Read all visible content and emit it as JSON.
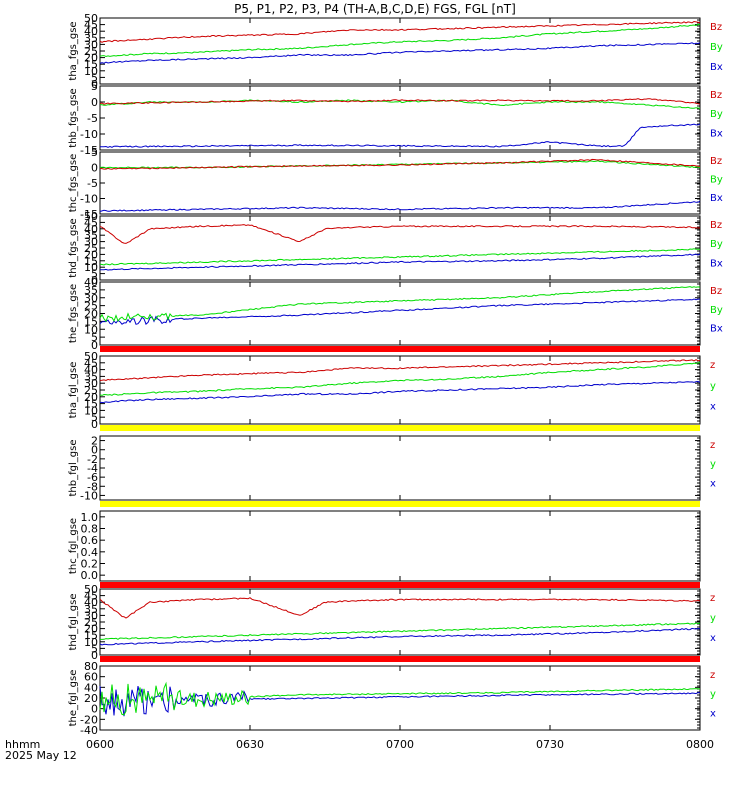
{
  "title": "P5, P1, P2, P3, P4 (TH-A,B,C,D,E) FGS, FGL [nT]",
  "time_label": "hhmm",
  "date_label": "2025 May 12",
  "colors": {
    "x": "#0000cc",
    "y": "#00dd00",
    "z": "#cc0000",
    "red_bar": "#ff0000",
    "yellow_bar": "#ffff00"
  },
  "chart_data": {
    "type": "line",
    "x_ticks": [
      "0600",
      "0630",
      "0700",
      "0730",
      "0800"
    ],
    "panels": [
      {
        "ylabel": "tha_fgs_gse",
        "ylim": [
          0,
          50
        ],
        "yticks": [
          "0",
          "5",
          "10",
          "15",
          "20",
          "25",
          "30",
          "35",
          "40",
          "45",
          "50"
        ],
        "tick_values": [
          0,
          5,
          10,
          15,
          20,
          25,
          30,
          35,
          40,
          45,
          50
        ],
        "legend": [
          "Bz",
          "By",
          "Bx"
        ],
        "series": [
          {
            "name": "Bx",
            "color": "x",
            "t": [
              0,
              10,
              20,
              30,
              40,
              50,
              60,
              70,
              80,
              90,
              100,
              110,
              120
            ],
            "v": [
              16,
              18,
              19,
              20,
              22,
              22,
              24,
              25,
              26,
              27,
              29,
              30,
              31
            ]
          },
          {
            "name": "By",
            "color": "y",
            "t": [
              0,
              10,
              20,
              30,
              40,
              50,
              60,
              70,
              80,
              90,
              100,
              110,
              120
            ],
            "v": [
              21,
              23,
              24,
              26,
              27,
              30,
              32,
              33,
              35,
              38,
              40,
              42,
              45
            ]
          },
          {
            "name": "Bz",
            "color": "z",
            "t": [
              0,
              10,
              20,
              30,
              40,
              50,
              60,
              70,
              80,
              90,
              100,
              110,
              120
            ],
            "v": [
              32,
              34,
              36,
              37,
              38,
              41,
              41,
              42,
              43,
              44,
              45,
              46,
              47
            ]
          }
        ]
      },
      {
        "ylabel": "thb_fgs_gse",
        "ylim": [
          -15,
          5
        ],
        "yticks": [
          "-15",
          "-10",
          "-5",
          "0",
          "5"
        ],
        "tick_values": [
          -15,
          -10,
          -5,
          0,
          5
        ],
        "legend": [
          "Bz",
          "By",
          "Bx"
        ],
        "series": [
          {
            "name": "Bx",
            "color": "x",
            "t": [
              0,
              20,
              40,
              60,
              80,
              90,
              100,
              105,
              108,
              112,
              120
            ],
            "v": [
              -14,
              -13.8,
              -13.5,
              -13.7,
              -13.9,
              -12.5,
              -13.8,
              -13.8,
              -8,
              -7.5,
              -7
            ]
          },
          {
            "name": "By",
            "color": "y",
            "t": [
              0,
              10,
              20,
              30,
              40,
              50,
              60,
              70,
              80,
              90,
              100,
              110,
              120
            ],
            "v": [
              -1,
              0,
              0,
              0.5,
              0,
              0.5,
              0,
              0.5,
              -1,
              0,
              0,
              -1,
              -2
            ]
          },
          {
            "name": "Bz",
            "color": "z",
            "t": [
              0,
              10,
              20,
              30,
              40,
              50,
              60,
              70,
              80,
              90,
              100,
              110,
              120
            ],
            "v": [
              -0.5,
              -0.3,
              0,
              0.3,
              0.5,
              0.2,
              0.6,
              0.4,
              0.5,
              0.3,
              0.4,
              1,
              -0.5
            ]
          }
        ]
      },
      {
        "ylabel": "thc_fgs_gse",
        "ylim": [
          -15,
          5
        ],
        "yticks": [
          "-15",
          "-10",
          "-5",
          "0",
          "5"
        ],
        "tick_values": [
          -15,
          -10,
          -5,
          0,
          5
        ],
        "legend": [
          "Bz",
          "By",
          "Bx"
        ],
        "series": [
          {
            "name": "Bx",
            "color": "x",
            "t": [
              0,
              20,
              40,
              60,
              80,
              100,
              120
            ],
            "v": [
              -14,
              -13.5,
              -13,
              -13.5,
              -13,
              -13,
              -11
            ]
          },
          {
            "name": "By",
            "color": "y",
            "t": [
              0,
              20,
              40,
              60,
              80,
              100,
              120
            ],
            "v": [
              0,
              0,
              0.5,
              1,
              1.5,
              2,
              0
            ]
          },
          {
            "name": "Bz",
            "color": "z",
            "t": [
              0,
              20,
              40,
              60,
              80,
              100,
              120
            ],
            "v": [
              -0.5,
              0,
              0.5,
              0.8,
              1.5,
              2.5,
              0.5
            ]
          }
        ]
      },
      {
        "ylabel": "thd_fgs_gse",
        "ylim": [
          0,
          50
        ],
        "yticks": [
          "0",
          "5",
          "10",
          "15",
          "20",
          "25",
          "30",
          "35",
          "40",
          "45",
          "50"
        ],
        "tick_values": [
          0,
          5,
          10,
          15,
          20,
          25,
          30,
          35,
          40,
          45,
          50
        ],
        "legend": [
          "Bz",
          "By",
          "Bx"
        ],
        "series": [
          {
            "name": "Bx",
            "color": "x",
            "t": [
              0,
              20,
              40,
              60,
              80,
              100,
              120
            ],
            "v": [
              8,
              10,
              12,
              14,
              15,
              17,
              20
            ]
          },
          {
            "name": "By",
            "color": "y",
            "t": [
              0,
              20,
              40,
              60,
              80,
              100,
              120
            ],
            "v": [
              12,
              14,
              16,
              18,
              20,
              22,
              24
            ]
          },
          {
            "name": "Bz",
            "color": "z",
            "t": [
              0,
              5,
              10,
              20,
              30,
              40,
              45,
              50,
              60,
              80,
              100,
              120
            ],
            "v": [
              42,
              28,
              40,
              42,
              43,
              30,
              40,
              41,
              42,
              42,
              42,
              41
            ]
          }
        ]
      },
      {
        "ylabel": "the_fgs_gse",
        "ylim": [
          0,
          40
        ],
        "yticks": [
          "0",
          "5",
          "10",
          "15",
          "20",
          "25",
          "30",
          "35",
          "40"
        ],
        "tick_values": [
          0,
          5,
          10,
          15,
          20,
          25,
          30,
          35,
          40
        ],
        "legend": [
          "Bz",
          "By",
          "Bx"
        ],
        "series": [
          {
            "name": "Bx",
            "color": "x",
            "t": [
              0,
              10,
              20,
              40,
              60,
              80,
              100,
              120
            ],
            "v": [
              14,
              16,
              17,
              19,
              22,
              25,
              27,
              29
            ]
          },
          {
            "name": "By",
            "color": "y",
            "t": [
              0,
              10,
              20,
              40,
              60,
              80,
              100,
              120
            ],
            "v": [
              17,
              18,
              19,
              26,
              28,
              30,
              34,
              37
            ]
          }
        ]
      },
      {
        "ylabel": "tha_fgl_gse",
        "ylim": [
          0,
          50
        ],
        "yticks": [
          "0",
          "5",
          "10",
          "15",
          "20",
          "25",
          "30",
          "35",
          "40",
          "45",
          "50"
        ],
        "tick_values": [
          0,
          5,
          10,
          15,
          20,
          25,
          30,
          35,
          40,
          45,
          50
        ],
        "legend": [
          "z",
          "y",
          "x"
        ],
        "series": [
          {
            "name": "x",
            "color": "x",
            "t": [
              0,
              10,
              20,
              30,
              40,
              50,
              60,
              70,
              80,
              90,
              100,
              110,
              120
            ],
            "v": [
              16,
              18,
              19,
              20,
              22,
              22,
              24,
              25,
              26,
              27,
              29,
              30,
              31
            ]
          },
          {
            "name": "y",
            "color": "y",
            "t": [
              0,
              10,
              20,
              30,
              40,
              50,
              60,
              70,
              80,
              90,
              100,
              110,
              120
            ],
            "v": [
              21,
              23,
              24,
              26,
              27,
              30,
              32,
              33,
              35,
              38,
              40,
              42,
              45
            ]
          },
          {
            "name": "z",
            "color": "z",
            "t": [
              0,
              10,
              20,
              30,
              40,
              50,
              60,
              70,
              80,
              90,
              100,
              110,
              120
            ],
            "v": [
              32,
              34,
              36,
              37,
              38,
              41,
              41,
              42,
              43,
              44,
              45,
              46,
              47
            ]
          }
        ]
      },
      {
        "ylabel": "thb_fgl_gse",
        "ylim": [
          -11,
          3
        ],
        "yticks": [
          "-10",
          "-8",
          "-6",
          "-4",
          "-2",
          "0",
          "2"
        ],
        "tick_values": [
          -10,
          -8,
          -6,
          -4,
          -2,
          0,
          2
        ],
        "legend": [
          "z",
          "y",
          "x"
        ],
        "series": []
      },
      {
        "ylabel": "thc_fgl_gse",
        "ylim": [
          -0.1,
          1.1
        ],
        "yticks": [
          "0.0",
          "0.2",
          "0.4",
          "0.6",
          "0.8",
          "1.0"
        ],
        "tick_values": [
          0,
          0.2,
          0.4,
          0.6,
          0.8,
          1.0
        ],
        "legend": [],
        "series": []
      },
      {
        "ylabel": "thd_fgl_gse",
        "ylim": [
          0,
          50
        ],
        "yticks": [
          "0",
          "5",
          "10",
          "15",
          "20",
          "25",
          "30",
          "35",
          "40",
          "45",
          "50"
        ],
        "tick_values": [
          0,
          5,
          10,
          15,
          20,
          25,
          30,
          35,
          40,
          45,
          50
        ],
        "legend": [
          "z",
          "y",
          "x"
        ],
        "series": [
          {
            "name": "x",
            "color": "x",
            "t": [
              0,
              20,
              40,
              60,
              80,
              100,
              120
            ],
            "v": [
              8,
              10,
              12,
              14,
              15,
              17,
              20
            ]
          },
          {
            "name": "y",
            "color": "y",
            "t": [
              0,
              20,
              40,
              60,
              80,
              100,
              120
            ],
            "v": [
              12,
              14,
              16,
              18,
              20,
              22,
              24
            ]
          },
          {
            "name": "z",
            "color": "z",
            "t": [
              0,
              5,
              10,
              20,
              30,
              40,
              45,
              50,
              60,
              80,
              100,
              120
            ],
            "v": [
              42,
              28,
              40,
              42,
              43,
              30,
              40,
              41,
              42,
              42,
              42,
              41
            ]
          }
        ]
      },
      {
        "ylabel": "the_fgl_gse",
        "ylim": [
          -40,
          80
        ],
        "yticks": [
          "-40",
          "-20",
          "0",
          "20",
          "40",
          "60",
          "80"
        ],
        "tick_values": [
          -40,
          -20,
          0,
          20,
          40,
          60,
          80
        ],
        "legend": [
          "z",
          "y",
          "x"
        ],
        "series": [
          {
            "name": "x",
            "color": "x",
            "t": [
              0,
              10,
              20,
              40,
              60,
              80,
              100,
              120
            ],
            "v": [
              14,
              16,
              17,
              19,
              22,
              25,
              27,
              29
            ]
          },
          {
            "name": "y",
            "color": "y",
            "t": [
              0,
              10,
              20,
              40,
              60,
              80,
              100,
              120
            ],
            "v": [
              17,
              18,
              19,
              26,
              28,
              30,
              34,
              37
            ]
          }
        ]
      }
    ]
  }
}
